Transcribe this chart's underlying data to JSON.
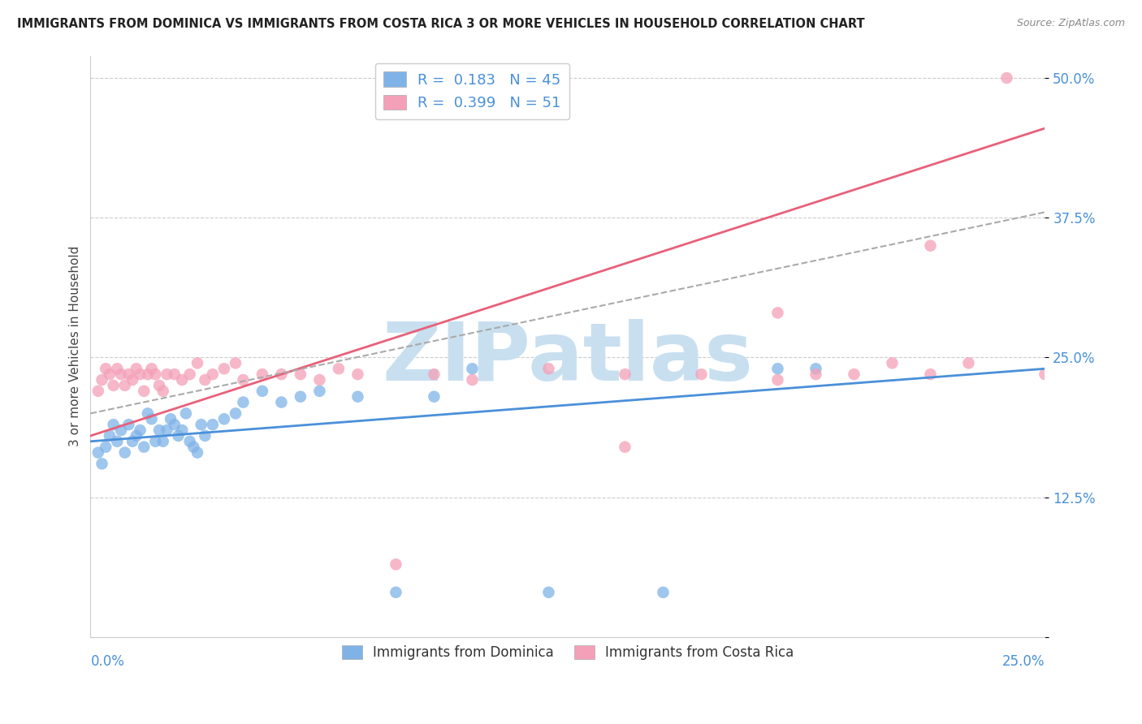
{
  "title": "IMMIGRANTS FROM DOMINICA VS IMMIGRANTS FROM COSTA RICA 3 OR MORE VEHICLES IN HOUSEHOLD CORRELATION CHART",
  "source": "Source: ZipAtlas.com",
  "ylabel": "3 or more Vehicles in Household",
  "yticks": [
    0.0,
    0.125,
    0.25,
    0.375,
    0.5
  ],
  "ytick_labels": [
    "",
    "12.5%",
    "25.0%",
    "37.5%",
    "50.0%"
  ],
  "xlim": [
    0.0,
    0.25
  ],
  "ylim": [
    0.0,
    0.52
  ],
  "legend_R1": "0.183",
  "legend_N1": "45",
  "legend_R2": "0.399",
  "legend_N2": "51",
  "color_dominica": "#7fb3e8",
  "color_costa_rica": "#f4a0b8",
  "trend_dominica_color": "#4a90d9",
  "trend_costa_rica_color": "#e8607a",
  "trend_dashed_color": "#aaaaaa",
  "background_color": "#ffffff",
  "watermark_color": "#c8dff0",
  "watermark_text": "ZIPatlas",
  "title_fontsize": 10.5,
  "tick_label_color": "#4a90d9",
  "dominica_x": [
    0.002,
    0.003,
    0.004,
    0.005,
    0.006,
    0.007,
    0.008,
    0.009,
    0.01,
    0.011,
    0.012,
    0.013,
    0.014,
    0.015,
    0.016,
    0.017,
    0.018,
    0.019,
    0.02,
    0.021,
    0.022,
    0.023,
    0.024,
    0.025,
    0.026,
    0.027,
    0.028,
    0.029,
    0.03,
    0.032,
    0.035,
    0.038,
    0.04,
    0.045,
    0.05,
    0.055,
    0.06,
    0.07,
    0.08,
    0.09,
    0.1,
    0.12,
    0.15,
    0.18,
    0.19
  ],
  "dominica_y": [
    0.165,
    0.155,
    0.17,
    0.18,
    0.19,
    0.175,
    0.185,
    0.165,
    0.19,
    0.175,
    0.18,
    0.185,
    0.17,
    0.2,
    0.195,
    0.175,
    0.185,
    0.175,
    0.185,
    0.195,
    0.19,
    0.18,
    0.185,
    0.2,
    0.175,
    0.17,
    0.165,
    0.19,
    0.18,
    0.19,
    0.195,
    0.2,
    0.21,
    0.22,
    0.21,
    0.215,
    0.22,
    0.215,
    0.04,
    0.215,
    0.24,
    0.04,
    0.04,
    0.24,
    0.24
  ],
  "costa_rica_x": [
    0.002,
    0.003,
    0.004,
    0.005,
    0.006,
    0.007,
    0.008,
    0.009,
    0.01,
    0.011,
    0.012,
    0.013,
    0.014,
    0.015,
    0.016,
    0.017,
    0.018,
    0.019,
    0.02,
    0.022,
    0.024,
    0.026,
    0.028,
    0.03,
    0.032,
    0.035,
    0.038,
    0.04,
    0.045,
    0.05,
    0.055,
    0.06,
    0.065,
    0.07,
    0.08,
    0.09,
    0.1,
    0.12,
    0.14,
    0.16,
    0.18,
    0.19,
    0.2,
    0.21,
    0.22,
    0.23,
    0.24,
    0.25,
    0.14,
    0.22,
    0.18
  ],
  "costa_rica_y": [
    0.22,
    0.23,
    0.24,
    0.235,
    0.225,
    0.24,
    0.235,
    0.225,
    0.235,
    0.23,
    0.24,
    0.235,
    0.22,
    0.235,
    0.24,
    0.235,
    0.225,
    0.22,
    0.235,
    0.235,
    0.23,
    0.235,
    0.245,
    0.23,
    0.235,
    0.24,
    0.245,
    0.23,
    0.235,
    0.235,
    0.235,
    0.23,
    0.24,
    0.235,
    0.065,
    0.235,
    0.23,
    0.24,
    0.235,
    0.235,
    0.23,
    0.235,
    0.235,
    0.245,
    0.235,
    0.245,
    0.5,
    0.235,
    0.17,
    0.35,
    0.29
  ],
  "trend_blue_x0": 0.0,
  "trend_blue_y0": 0.175,
  "trend_blue_x1": 0.25,
  "trend_blue_y1": 0.24,
  "trend_pink_x0": 0.0,
  "trend_pink_y0": 0.18,
  "trend_pink_x1": 0.25,
  "trend_pink_y1": 0.455,
  "trend_dash_x0": 0.0,
  "trend_dash_y0": 0.2,
  "trend_dash_x1": 0.25,
  "trend_dash_y1": 0.38
}
